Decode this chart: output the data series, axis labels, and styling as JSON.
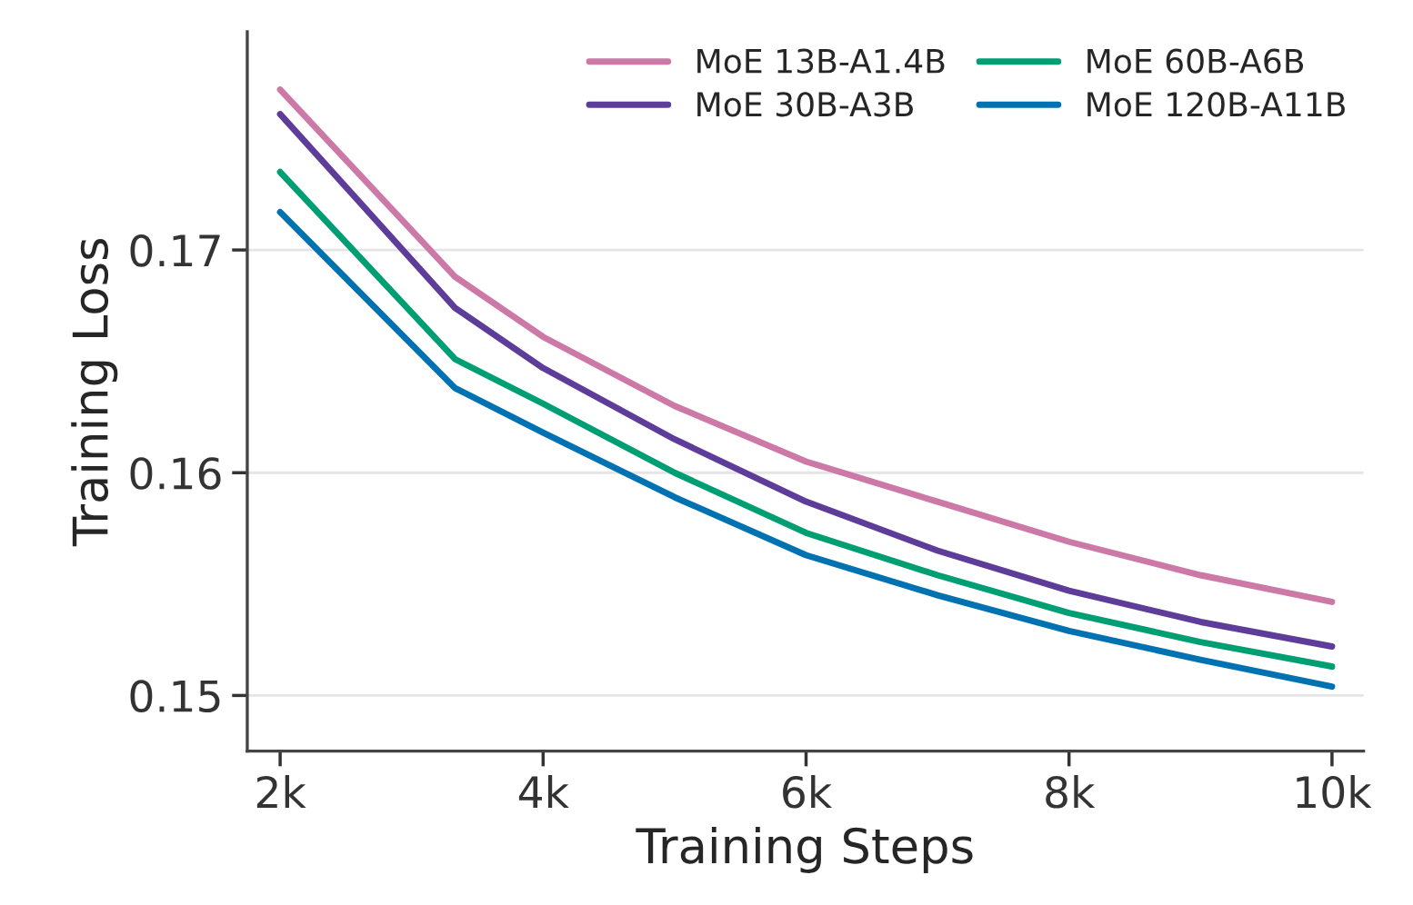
{
  "chart_data": {
    "type": "line",
    "xlabel": "Training Steps",
    "ylabel": "Training Loss",
    "x": [
      2,
      3.33,
      4,
      5,
      6,
      7,
      8,
      9,
      10
    ],
    "series": [
      {
        "name": "MoE 13B-A1.4B",
        "color": "#cc79a7",
        "values": [
          0.1772,
          0.1688,
          0.1661,
          0.163,
          0.1605,
          0.1587,
          0.1569,
          0.1554,
          0.1542
        ]
      },
      {
        "name": "MoE 30B-A3B",
        "color": "#5e3c99",
        "values": [
          0.1761,
          0.1674,
          0.1647,
          0.1615,
          0.1587,
          0.1565,
          0.1547,
          0.1533,
          0.1522
        ]
      },
      {
        "name": "MoE 60B-A6B",
        "color": "#009e73",
        "values": [
          0.1735,
          0.1651,
          0.1631,
          0.16,
          0.1573,
          0.1554,
          0.1537,
          0.1524,
          0.1513
        ]
      },
      {
        "name": "MoE 120B-A11B",
        "color": "#0072b2",
        "values": [
          0.1717,
          0.1638,
          0.1618,
          0.1589,
          0.1563,
          0.1545,
          0.1529,
          0.1516,
          0.1504
        ]
      }
    ],
    "xlim": [
      1.75,
      10.24
    ],
    "xticks": [
      {
        "value": 2,
        "label": "2k"
      },
      {
        "value": 4,
        "label": "4k"
      },
      {
        "value": 6,
        "label": "6k"
      },
      {
        "value": 8,
        "label": "8k"
      },
      {
        "value": 10,
        "label": "10k"
      }
    ],
    "ylim": [
      0.1475,
      0.1798
    ],
    "yticks": [
      {
        "value": 0.15,
        "label": "0.15"
      },
      {
        "value": 0.16,
        "label": "0.16"
      },
      {
        "value": 0.17,
        "label": "0.17"
      }
    ],
    "grid": "y",
    "legend": "top right",
    "marker": "none",
    "line_style": "solid"
  }
}
